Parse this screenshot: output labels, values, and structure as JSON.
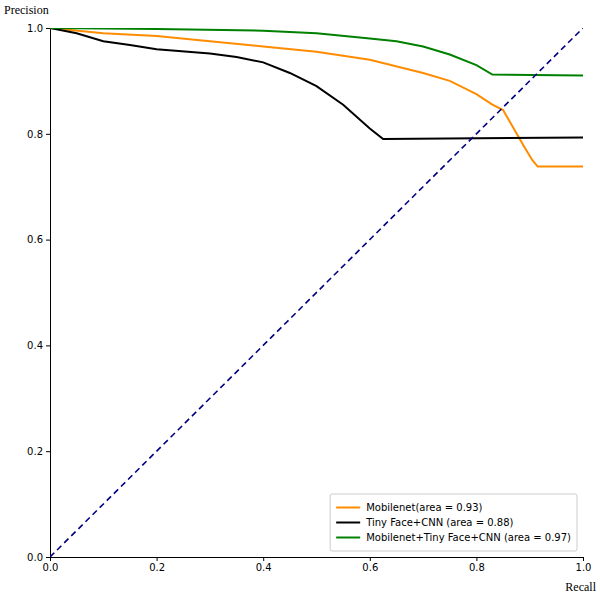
{
  "chart_data": {
    "type": "line",
    "xlabel": "Recall",
    "ylabel": "Precision",
    "xlim": [
      0,
      1
    ],
    "ylim": [
      0,
      1
    ],
    "xticks": [
      {
        "value": 0,
        "label": "0.0"
      },
      {
        "value": 0.2,
        "label": "0.2"
      },
      {
        "value": 0.4,
        "label": "0.4"
      },
      {
        "value": 0.6,
        "label": "0.6"
      },
      {
        "value": 0.8,
        "label": "0.8"
      },
      {
        "value": 1,
        "label": "1.0"
      }
    ],
    "yticks": [
      {
        "value": 0,
        "label": "0.0"
      },
      {
        "value": 0.2,
        "label": "0.2"
      },
      {
        "value": 0.4,
        "label": "0.4"
      },
      {
        "value": 0.6,
        "label": "0.6"
      },
      {
        "value": 0.8,
        "label": "0.8"
      },
      {
        "value": 1,
        "label": "1.0"
      }
    ],
    "legend": "lower right",
    "series": [
      {
        "name": "Mobilenet(area = 0.93)",
        "color": "#ff8c00",
        "line_style": "solid",
        "x": [
          0,
          0.1,
          0.2,
          0.3,
          0.4,
          0.5,
          0.6,
          0.7,
          0.75,
          0.8,
          0.83,
          0.85,
          0.87,
          0.89,
          0.905,
          0.915,
          1.0
        ],
        "values": [
          1.0,
          0.99,
          0.985,
          0.975,
          0.965,
          0.955,
          0.94,
          0.915,
          0.9,
          0.875,
          0.855,
          0.845,
          0.81,
          0.775,
          0.75,
          0.738,
          0.738
        ]
      },
      {
        "name": "Tiny Face+CNN (area = 0.88)",
        "color": "#000000",
        "line_style": "solid",
        "x": [
          0,
          0.05,
          0.1,
          0.15,
          0.2,
          0.3,
          0.35,
          0.4,
          0.45,
          0.5,
          0.55,
          0.6,
          0.625,
          1.0
        ],
        "values": [
          1.0,
          0.99,
          0.975,
          0.968,
          0.96,
          0.952,
          0.945,
          0.935,
          0.915,
          0.89,
          0.855,
          0.81,
          0.79,
          0.793
        ]
      },
      {
        "name": "Mobilenet+Tiny Face+CNN (area = 0.97)",
        "color": "#008000",
        "line_style": "solid",
        "x": [
          0,
          0.2,
          0.4,
          0.5,
          0.6,
          0.65,
          0.7,
          0.75,
          0.8,
          0.83,
          1.0
        ],
        "values": [
          1.0,
          0.998,
          0.995,
          0.99,
          0.98,
          0.975,
          0.965,
          0.95,
          0.93,
          0.912,
          0.91
        ]
      },
      {
        "color": "#000080",
        "line_style": "dashed",
        "x": [
          0,
          1
        ],
        "values": [
          0,
          1
        ]
      }
    ]
  }
}
